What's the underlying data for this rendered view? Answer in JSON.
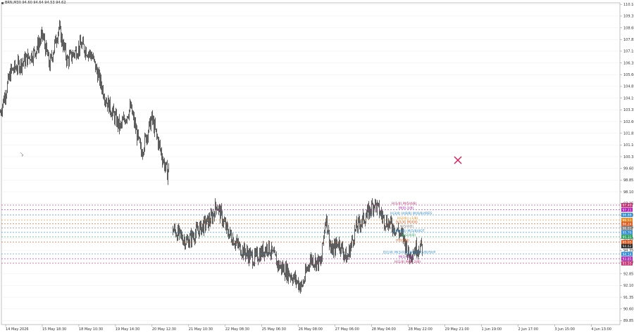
{
  "chart_header": {
    "symbol_line": "BRN,M30  94.60 94.64 94.53 94.62"
  },
  "colors": {
    "candle": "#1a1a1a",
    "grid": "#ececec",
    "axis": "#999999",
    "marker": "#d6205e"
  },
  "chart_data": {
    "type": "candlestick",
    "price_axis_ticks": [
      "110.10",
      "109.35",
      "108.60",
      "107.85",
      "107.10",
      "106.35",
      "105.60",
      "104.85",
      "104.10",
      "103.35",
      "102.60",
      "101.85",
      "101.10",
      "100.35",
      "99.60",
      "98.85",
      "98.10",
      "97.35",
      "96.60",
      "95.85",
      "95.10",
      "94.35",
      "93.60",
      "92.85",
      "92.10",
      "91.35",
      "90.60",
      "89.85"
    ],
    "time_axis_labels": [
      "14 May 2026",
      "15 May 18:30",
      "18 May 10:30",
      "19 May 14:30",
      "20 May 12:30",
      "21 May 10:30",
      "22 May 08:30",
      "25 May 06:30",
      "26 May 08:00",
      "27 May 06:00",
      "28 May 04:00",
      "28 May 22:00",
      "29 May 21:00",
      "1 Jun 19:00",
      "2 Jun 17:00",
      "3 Jun 15:00",
      "4 Jun 13:00"
    ],
    "ylim": [
      89.6,
      110.2
    ],
    "segments": [
      {
        "start": 0,
        "count": 240,
        "from": 103.2,
        "path": [
          [
            0,
            103.2
          ],
          [
            15,
            105.8
          ],
          [
            48,
            107.0
          ],
          [
            60,
            108.1
          ],
          [
            70,
            106.2
          ],
          [
            83,
            108.6
          ],
          [
            95,
            106.5
          ],
          [
            115,
            107.5
          ],
          [
            130,
            106.8
          ],
          [
            150,
            104.0
          ],
          [
            170,
            102.2
          ],
          [
            185,
            103.5
          ],
          [
            200,
            100.6
          ],
          [
            215,
            102.8
          ],
          [
            232,
            100.0
          ],
          [
            237,
            99.3
          ],
          [
            243,
            100.4
          ]
        ]
      },
      {
        "start": 245,
        "count": 355,
        "from": 95.7,
        "path": [
          [
            245,
            95.7
          ],
          [
            265,
            94.9
          ],
          [
            280,
            95.6
          ],
          [
            300,
            96.4
          ],
          [
            307,
            97.3
          ],
          [
            322,
            95.6
          ],
          [
            340,
            94.5
          ],
          [
            360,
            93.8
          ],
          [
            380,
            94.6
          ],
          [
            395,
            93.4
          ],
          [
            412,
            92.8
          ],
          [
            428,
            92.0
          ],
          [
            440,
            93.8
          ],
          [
            455,
            93.5
          ],
          [
            462,
            96.6
          ],
          [
            470,
            94.2
          ],
          [
            480,
            94.9
          ],
          [
            492,
            93.8
          ],
          [
            505,
            95.8
          ],
          [
            520,
            96.6
          ],
          [
            531,
            97.4
          ],
          [
            545,
            96.3
          ],
          [
            560,
            95.8
          ],
          [
            572,
            95.2
          ],
          [
            580,
            94.0
          ],
          [
            590,
            94.5
          ],
          [
            600,
            94.6
          ]
        ]
      }
    ],
    "current_price": "94.62",
    "marker_label": "x"
  },
  "levels": [
    {
      "label": "H(1/4) M(5/4/8)",
      "price_tag": "97.40",
      "color": "#c03070",
      "price": 97.25,
      "label_x": 556
    },
    {
      "label": "M(0/-1/8)",
      "price_tag": "97.21",
      "color": "#b020b0",
      "price": 96.95,
      "label_x": 566
    },
    {
      "label": "H(3/4) H(8/8) W(6/8)/IRES",
      "price_tag": "96.88",
      "color": "#2e8bd0",
      "price": 96.62,
      "label_x": 554
    },
    {
      "label": "H(2/4)(+1/8)",
      "price_tag": "96.51",
      "color": "#e08a20",
      "price": 96.3,
      "label_x": 564
    },
    {
      "label": "H(1/4) M(4/8)",
      "price_tag": "96.24",
      "color": "#e05a20",
      "price": 96.05,
      "label_x": 562
    },
    {
      "label": "H(5/4/8)",
      "price_tag": "96.01",
      "color": "#808080",
      "price": 95.78,
      "label_x": 568
    },
    {
      "label": "H(6/4/8) M(5/8)/IOT",
      "price_tag": "95.76",
      "color": "#2e8bd0",
      "price": 95.5,
      "label_x": 558
    },
    {
      "label": "W(2/4/8)",
      "price_tag": "95.31",
      "color": "#30a060",
      "price": 95.22,
      "label_x": 570
    },
    {
      "label": "H(0/4/8)",
      "price_tag": "95.05",
      "color": "#e05a20",
      "price": 94.88,
      "label_x": 562
    },
    {
      "label": "current",
      "price_tag": "94.62",
      "color": "#202020",
      "price": 94.62,
      "label_x": -1
    },
    {
      "label": "D(1/4) M(3/4) D(8/8)/IT(5/8)/SUP",
      "price_tag": "94.14",
      "color": "#2e8bd0",
      "price": 94.12,
      "label_x": 544
    },
    {
      "label": "M(1/-1/8)",
      "price_tag": "93.85",
      "color": "#b020b0",
      "price": 93.82,
      "label_x": 566
    },
    {
      "label": "H(1/4) M(0/-2/8)",
      "price_tag": "93.55",
      "color": "#c03070",
      "price": 93.52,
      "label_x": 560
    }
  ]
}
